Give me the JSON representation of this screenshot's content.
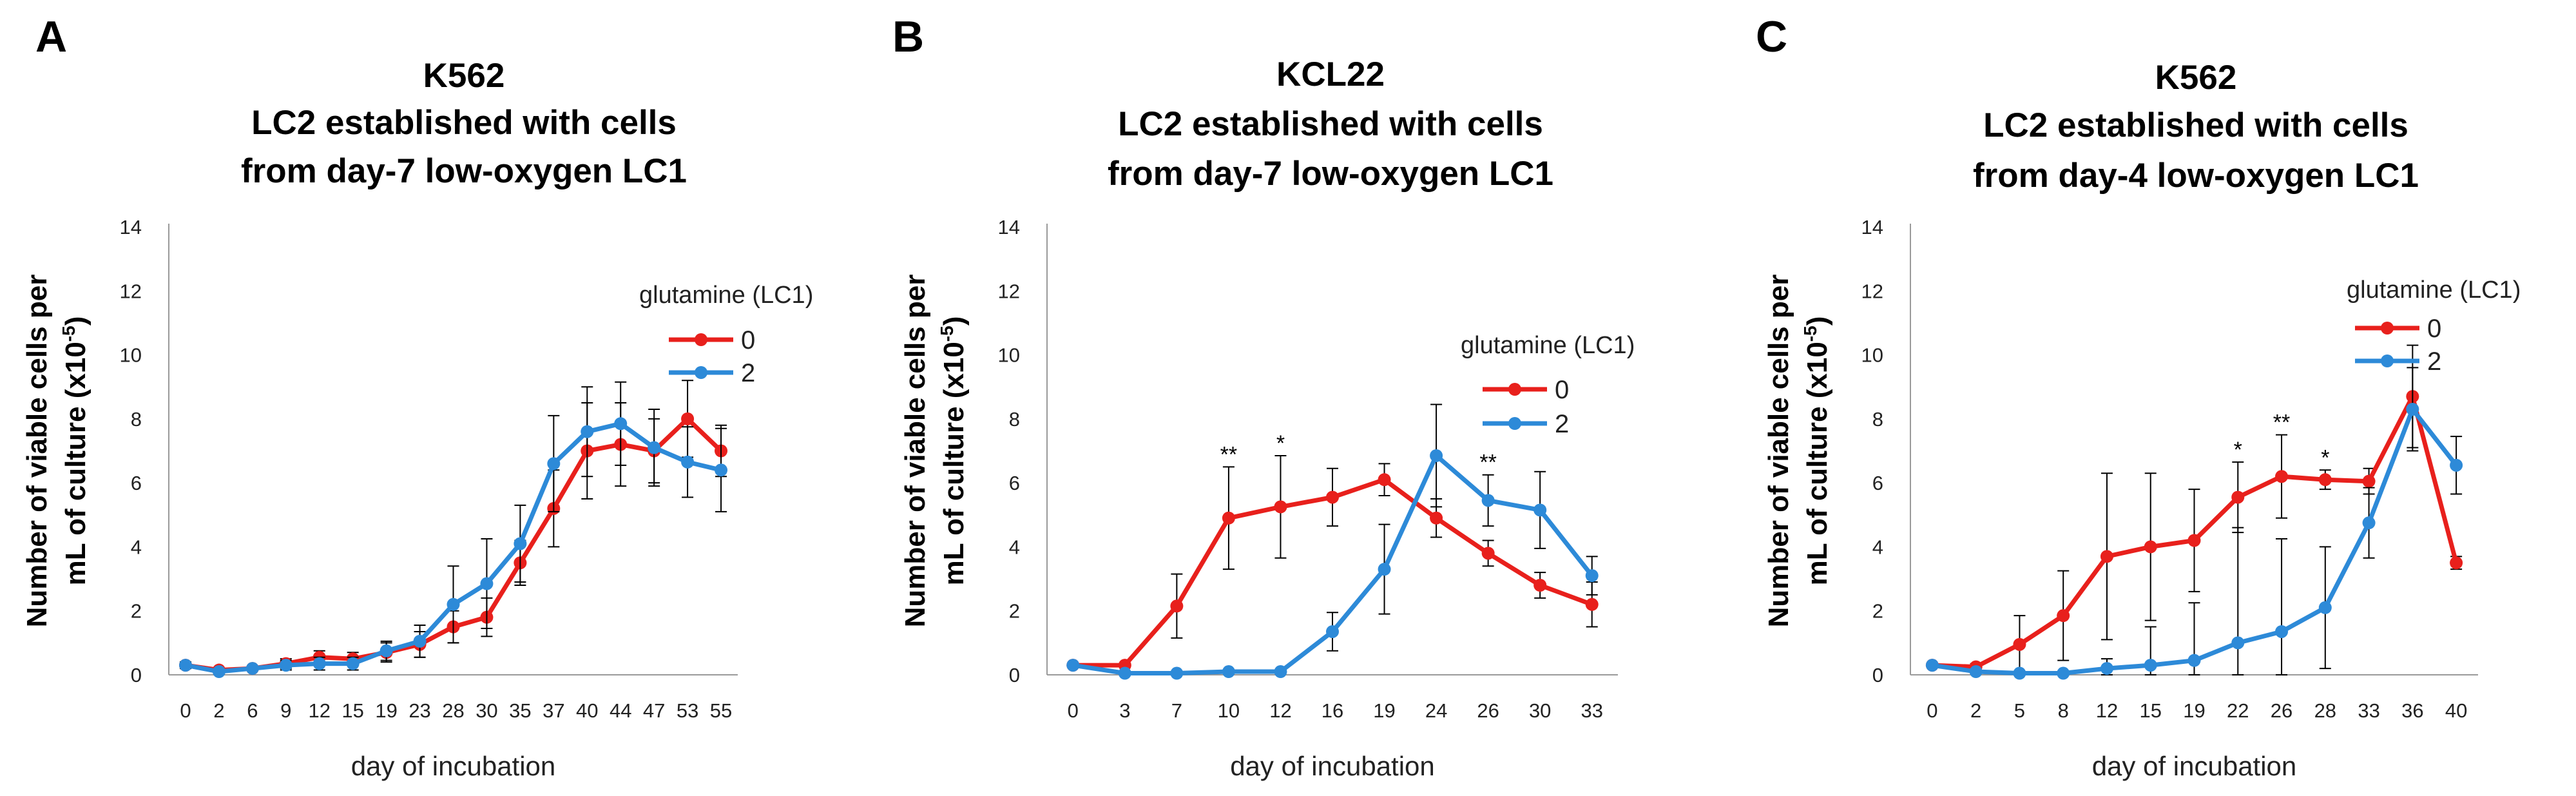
{
  "chart_data": [
    {
      "panel_letter": "A",
      "type": "line",
      "title_lines": [
        "K562",
        "LC2 established with cells",
        "from day-7 low-oxygen LC1"
      ],
      "xlabel": "day of incubation",
      "ylabel_lines": [
        "Number of viable cells per",
        "mL of culture (x10",
        "-5",
        ")"
      ],
      "categories": [
        "0",
        "2",
        "6",
        "9",
        "12",
        "15",
        "19",
        "23",
        "28",
        "30",
        "35",
        "37",
        "40",
        "44",
        "47",
        "53",
        "55"
      ],
      "ylim": [
        0,
        14
      ],
      "yticks": [
        "0",
        "2",
        "4",
        "6",
        "8",
        "10",
        "12",
        "14"
      ],
      "legend_title": "glutamine (LC1)",
      "series": [
        {
          "name": "0",
          "color": "#e8201c",
          "values": [
            0.3,
            0.15,
            0.2,
            0.35,
            0.55,
            0.5,
            0.7,
            0.95,
            1.5,
            1.8,
            3.5,
            5.2,
            7.0,
            7.2,
            7.0,
            8.0,
            7.0
          ],
          "errors": [
            0.1,
            0.05,
            0.05,
            0.15,
            0.2,
            0.2,
            0.3,
            0.4,
            0.5,
            0.6,
            0.7,
            1.2,
            1.5,
            1.3,
            1.0,
            1.2,
            0.8
          ]
        },
        {
          "name": "2",
          "color": "#2d8ad8",
          "values": [
            0.3,
            0.1,
            0.2,
            0.3,
            0.35,
            0.35,
            0.75,
            1.05,
            2.2,
            2.85,
            4.1,
            6.6,
            7.6,
            7.85,
            7.1,
            6.65,
            6.4
          ],
          "errors": [
            0.1,
            0.05,
            0.05,
            0.15,
            0.2,
            0.2,
            0.3,
            0.5,
            1.2,
            1.4,
            1.2,
            1.5,
            1.4,
            1.3,
            1.2,
            1.1,
            1.3
          ]
        }
      ],
      "annotations": []
    },
    {
      "panel_letter": "B",
      "type": "line",
      "title_lines": [
        "KCL22",
        "LC2 established with cells",
        "from day-7 low-oxygen LC1"
      ],
      "xlabel": "day of incubation",
      "ylabel_lines": [
        "Number of viable cells per",
        "mL of culture (x10",
        "-5",
        ")"
      ],
      "categories": [
        "0",
        "3",
        "7",
        "10",
        "12",
        "16",
        "19",
        "24",
        "26",
        "30",
        "33"
      ],
      "ylim": [
        0,
        14
      ],
      "yticks": [
        "0",
        "2",
        "4",
        "6",
        "8",
        "10",
        "12",
        "14"
      ],
      "legend_title": "glutamine (LC1)",
      "series": [
        {
          "name": "0",
          "color": "#e8201c",
          "values": [
            0.3,
            0.3,
            2.15,
            4.9,
            5.25,
            5.55,
            6.1,
            4.9,
            3.8,
            2.8,
            2.2
          ],
          "errors": [
            0.05,
            0.05,
            1.0,
            1.6,
            1.6,
            0.9,
            0.5,
            0.6,
            0.4,
            0.4,
            0.7
          ]
        },
        {
          "name": "2",
          "color": "#2d8ad8",
          "values": [
            0.3,
            0.05,
            0.05,
            0.1,
            0.1,
            1.35,
            3.3,
            6.85,
            5.45,
            5.15,
            3.1
          ],
          "errors": [
            0.05,
            0.02,
            0.02,
            0.05,
            0.05,
            0.6,
            1.4,
            1.6,
            0.8,
            1.2,
            0.6
          ]
        }
      ],
      "annotations": [
        {
          "category": "10",
          "text": "**"
        },
        {
          "category": "12",
          "text": "*"
        },
        {
          "category": "26",
          "text": "**"
        }
      ]
    },
    {
      "panel_letter": "C",
      "type": "line",
      "title_lines": [
        "K562",
        "LC2 established with cells",
        "from day-4 low-oxygen LC1"
      ],
      "xlabel": "day of incubation",
      "ylabel_lines": [
        "Number of viable cells per",
        "mL of culture (x10",
        "-5",
        ")"
      ],
      "categories": [
        "0",
        "2",
        "5",
        "8",
        "12",
        "15",
        "19",
        "22",
        "26",
        "28",
        "33",
        "36",
        "40"
      ],
      "ylim": [
        0,
        14
      ],
      "yticks": [
        "0",
        "2",
        "4",
        "6",
        "8",
        "10",
        "12",
        "14"
      ],
      "legend_title": "glutamine (LC1)",
      "series": [
        {
          "name": "0",
          "color": "#e8201c",
          "values": [
            0.3,
            0.25,
            0.95,
            1.85,
            3.7,
            4.0,
            4.2,
            5.55,
            6.2,
            6.1,
            6.05,
            8.7,
            3.5
          ],
          "errors": [
            0.05,
            0.1,
            0.9,
            1.4,
            2.6,
            2.3,
            1.6,
            1.1,
            1.3,
            0.3,
            0.4,
            1.6,
            0.2
          ]
        },
        {
          "name": "2",
          "color": "#2d8ad8",
          "values": [
            0.3,
            0.1,
            0.05,
            0.05,
            0.2,
            0.3,
            0.45,
            1.0,
            1.35,
            2.1,
            4.75,
            8.3,
            6.55
          ],
          "errors": [
            0.05,
            0.05,
            0.02,
            0.05,
            0.3,
            1.2,
            1.8,
            3.6,
            2.9,
            1.9,
            1.1,
            1.3,
            0.9
          ]
        }
      ],
      "annotations": [
        {
          "category": "22",
          "text": "*"
        },
        {
          "category": "26",
          "text": "**"
        },
        {
          "category": "28",
          "text": "*"
        }
      ]
    }
  ]
}
